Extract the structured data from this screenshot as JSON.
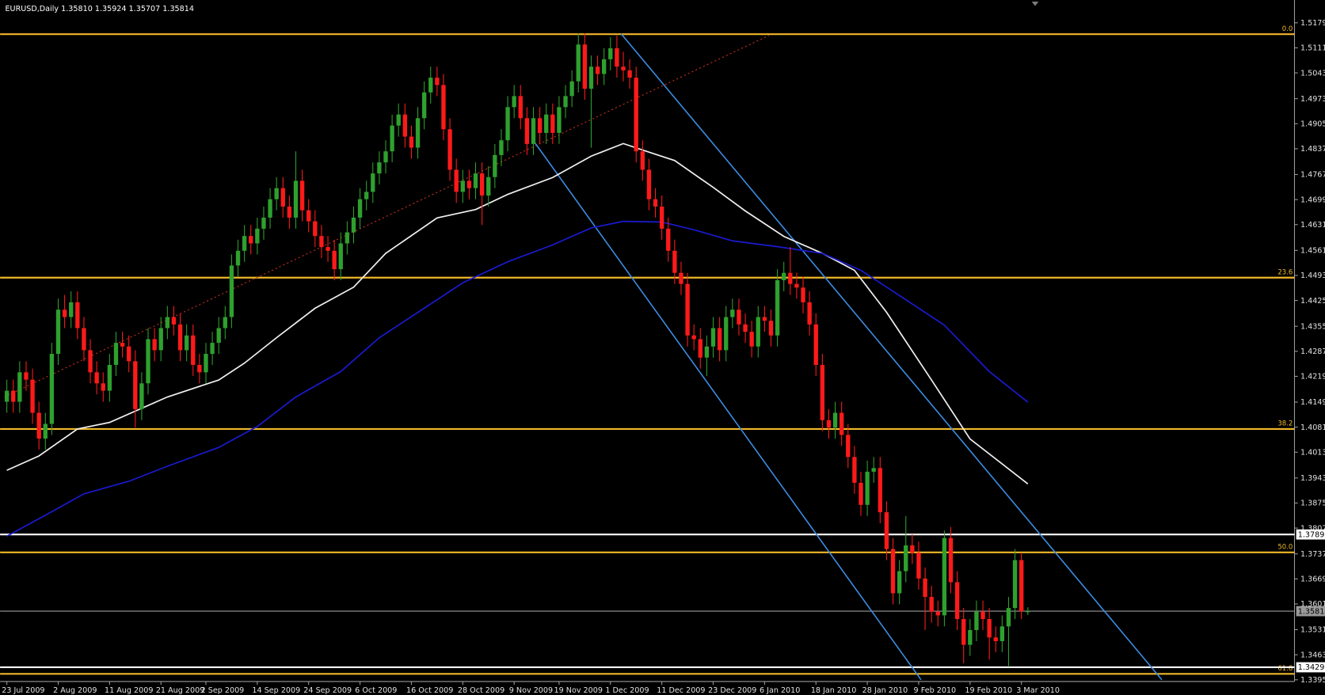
{
  "chart_data": {
    "type": "candlestick",
    "header": "EURUSD,Daily  1.35810 1.35924 1.35707 1.35814",
    "up_color": "#2ea02e",
    "down_color": "#ff1a1a",
    "ylim": [
      1.3395,
      1.5179
    ],
    "yticks": [
      {
        "value": 1.5179,
        "label": "1.51790"
      },
      {
        "value": 1.5111,
        "label": "1.51110"
      },
      {
        "value": 1.5043,
        "label": "1.50430"
      },
      {
        "value": 1.4973,
        "label": "1.49730"
      },
      {
        "value": 1.4905,
        "label": "1.49050"
      },
      {
        "value": 1.4837,
        "label": "1.48370"
      },
      {
        "value": 1.4767,
        "label": "1.47670"
      },
      {
        "value": 1.4699,
        "label": "1.46990"
      },
      {
        "value": 1.4631,
        "label": "1.46310"
      },
      {
        "value": 1.4561,
        "label": "1.45610"
      },
      {
        "value": 1.4493,
        "label": "1.44930"
      },
      {
        "value": 1.4425,
        "label": "1.44250"
      },
      {
        "value": 1.4355,
        "label": "1.43550"
      },
      {
        "value": 1.4287,
        "label": "1.42870"
      },
      {
        "value": 1.4219,
        "label": "1.42190"
      },
      {
        "value": 1.4149,
        "label": "1.41490"
      },
      {
        "value": 1.4081,
        "label": "1.40810"
      },
      {
        "value": 1.4013,
        "label": "1.40130"
      },
      {
        "value": 1.3943,
        "label": "1.39430"
      },
      {
        "value": 1.3875,
        "label": "1.38750"
      },
      {
        "value": 1.3807,
        "label": "1.38070"
      },
      {
        "value": 1.3737,
        "label": "1.37370"
      },
      {
        "value": 1.3669,
        "label": "1.36690"
      },
      {
        "value": 1.3601,
        "label": "1.36010"
      },
      {
        "value": 1.3531,
        "label": "1.35310"
      },
      {
        "value": 1.3463,
        "label": "1.34630"
      },
      {
        "value": 1.3395,
        "label": "1.33950"
      }
    ],
    "categories": [
      "23 Jul 2009",
      null,
      null,
      null,
      null,
      null,
      null,
      null,
      "2 Aug 2009",
      null,
      null,
      null,
      null,
      null,
      null,
      null,
      "11 Aug 2009",
      null,
      null,
      null,
      null,
      null,
      null,
      null,
      "21 Aug 2009",
      null,
      null,
      null,
      null,
      null,
      null,
      "2 Sep 2009",
      null,
      null,
      null,
      null,
      null,
      null,
      null,
      "14 Sep 2009",
      null,
      null,
      null,
      null,
      null,
      null,
      null,
      "24 Sep 2009",
      null,
      null,
      null,
      null,
      null,
      null,
      null,
      "6 Oct 2009",
      null,
      null,
      null,
      null,
      null,
      null,
      null,
      "16 Oct 2009",
      null,
      null,
      null,
      null,
      null,
      null,
      null,
      "28 Oct 2009",
      null,
      null,
      null,
      null,
      null,
      null,
      null,
      "9 Nov 2009",
      null,
      null,
      null,
      null,
      null,
      null,
      "19 Nov 2009",
      null,
      null,
      null,
      null,
      null,
      null,
      null,
      "1 Dec 2009",
      null,
      null,
      null,
      null,
      null,
      null,
      null,
      "11 Dec 2009",
      null,
      null,
      null,
      null,
      null,
      null,
      null,
      "23 Dec 2009",
      null,
      null,
      null,
      null,
      null,
      null,
      null,
      "6 Jan 2010",
      null,
      null,
      null,
      null,
      null,
      null,
      null,
      "18 Jan 2010",
      null,
      null,
      null,
      null,
      null,
      null,
      null,
      "28 Jan 2010",
      null,
      null,
      null,
      null,
      null,
      null,
      null,
      "9 Feb 2010",
      null,
      null,
      null,
      null,
      null,
      null,
      null,
      "19 Feb 2010",
      null,
      null,
      null,
      null,
      null,
      null,
      null,
      "3 Mar 2010",
      null
    ],
    "open": [
      1.415,
      1.418,
      1.415,
      1.423,
      1.421,
      1.412,
      1.405,
      1.409,
      1.428,
      1.44,
      1.438,
      1.442,
      1.435,
      1.429,
      1.423,
      1.42,
      1.418,
      1.425,
      1.431,
      1.43,
      1.426,
      1.413,
      1.42,
      1.432,
      1.429,
      1.435,
      1.438,
      1.436,
      1.429,
      1.433,
      1.425,
      1.423,
      1.428,
      1.431,
      1.435,
      1.438,
      1.452,
      1.456,
      1.46,
      1.458,
      1.462,
      1.465,
      1.47,
      1.473,
      1.468,
      1.465,
      1.475,
      1.467,
      1.464,
      1.46,
      1.457,
      1.456,
      1.451,
      1.458,
      1.461,
      1.465,
      1.47,
      1.472,
      1.477,
      1.48,
      1.483,
      1.49,
      1.493,
      1.487,
      1.484,
      1.492,
      1.499,
      1.503,
      1.501,
      1.489,
      1.478,
      1.472,
      1.475,
      1.473,
      1.477,
      1.471,
      1.476,
      1.482,
      1.486,
      1.495,
      1.498,
      1.492,
      1.485,
      1.492,
      1.488,
      1.493,
      1.488,
      1.495,
      1.498,
      1.502,
      1.512,
      1.5,
      1.506,
      1.504,
      1.508,
      1.511,
      1.506,
      1.505,
      1.503,
      1.483,
      1.478,
      1.47,
      1.468,
      1.462,
      1.456,
      1.45,
      1.447,
      1.433,
      1.432,
      1.427,
      1.43,
      1.435,
      1.429,
      1.438,
      1.44,
      1.436,
      1.434,
      1.43,
      1.438,
      1.437,
      1.433,
      1.448,
      1.45,
      1.447,
      1.446,
      1.442,
      1.436,
      1.425,
      1.41,
      1.408,
      1.412,
      1.406,
      1.4,
      1.393,
      1.387,
      1.396,
      1.397,
      1.385,
      1.375,
      1.363,
      1.369,
      1.376,
      1.374,
      1.367,
      1.362,
      1.358,
      1.357,
      1.378,
      1.366,
      1.356,
      1.349,
      1.353,
      1.358,
      1.356,
      1.351,
      1.35,
      1.354,
      1.359,
      1.372,
      1.3581
    ],
    "high": [
      1.421,
      1.421,
      1.426,
      1.426,
      1.424,
      1.415,
      1.412,
      1.431,
      1.443,
      1.444,
      1.445,
      1.445,
      1.438,
      1.432,
      1.426,
      1.423,
      1.428,
      1.434,
      1.434,
      1.433,
      1.429,
      1.423,
      1.435,
      1.435,
      1.438,
      1.441,
      1.441,
      1.439,
      1.436,
      1.436,
      1.428,
      1.431,
      1.434,
      1.438,
      1.441,
      1.455,
      1.459,
      1.463,
      1.463,
      1.465,
      1.468,
      1.473,
      1.476,
      1.476,
      1.471,
      1.483,
      1.478,
      1.47,
      1.467,
      1.463,
      1.46,
      1.459,
      1.461,
      1.464,
      1.468,
      1.473,
      1.475,
      1.48,
      1.483,
      1.486,
      1.493,
      1.496,
      1.496,
      1.49,
      1.495,
      1.502,
      1.506,
      1.506,
      1.504,
      1.492,
      1.481,
      1.478,
      1.478,
      1.48,
      1.48,
      1.479,
      1.485,
      1.489,
      1.498,
      1.501,
      1.501,
      1.495,
      1.495,
      1.495,
      1.496,
      1.496,
      1.498,
      1.501,
      1.505,
      1.515,
      1.515,
      1.509,
      1.509,
      1.511,
      1.514,
      1.5144,
      1.51,
      1.508,
      1.506,
      1.486,
      1.481,
      1.473,
      1.471,
      1.465,
      1.459,
      1.453,
      1.45,
      1.436,
      1.435,
      1.433,
      1.438,
      1.438,
      1.441,
      1.443,
      1.443,
      1.439,
      1.437,
      1.441,
      1.441,
      1.44,
      1.451,
      1.453,
      1.457,
      1.45,
      1.449,
      1.445,
      1.439,
      1.428,
      1.413,
      1.415,
      1.415,
      1.409,
      1.403,
      1.396,
      1.399,
      1.4,
      1.4,
      1.388,
      1.378,
      1.372,
      1.384,
      1.379,
      1.377,
      1.37,
      1.365,
      1.361,
      1.38,
      1.381,
      1.369,
      1.359,
      1.356,
      1.361,
      1.361,
      1.359,
      1.354,
      1.357,
      1.362,
      1.375,
      1.374,
      1.3592
    ],
    "low": [
      1.412,
      1.412,
      1.412,
      1.418,
      1.409,
      1.402,
      1.402,
      1.406,
      1.425,
      1.435,
      1.435,
      1.432,
      1.426,
      1.42,
      1.417,
      1.415,
      1.415,
      1.422,
      1.427,
      1.423,
      1.408,
      1.41,
      1.417,
      1.426,
      1.426,
      1.432,
      1.433,
      1.426,
      1.426,
      1.422,
      1.42,
      1.42,
      1.425,
      1.428,
      1.432,
      1.435,
      1.449,
      1.453,
      1.455,
      1.455,
      1.459,
      1.462,
      1.467,
      1.465,
      1.462,
      1.462,
      1.464,
      1.461,
      1.457,
      1.454,
      1.453,
      1.448,
      1.448,
      1.455,
      1.458,
      1.462,
      1.467,
      1.469,
      1.474,
      1.477,
      1.48,
      1.487,
      1.484,
      1.481,
      1.481,
      1.489,
      1.496,
      1.498,
      1.486,
      1.475,
      1.469,
      1.469,
      1.47,
      1.47,
      1.463,
      1.468,
      1.473,
      1.479,
      1.483,
      1.492,
      1.489,
      1.482,
      1.482,
      1.485,
      1.485,
      1.485,
      1.485,
      1.492,
      1.495,
      1.499,
      1.497,
      1.484,
      1.501,
      1.501,
      1.505,
      1.503,
      1.502,
      1.5,
      1.48,
      1.475,
      1.467,
      1.465,
      1.459,
      1.453,
      1.447,
      1.444,
      1.43,
      1.429,
      1.424,
      1.422,
      1.427,
      1.426,
      1.426,
      1.435,
      1.433,
      1.431,
      1.427,
      1.427,
      1.434,
      1.43,
      1.43,
      1.445,
      1.444,
      1.443,
      1.439,
      1.433,
      1.422,
      1.407,
      1.405,
      1.405,
      1.403,
      1.397,
      1.39,
      1.384,
      1.384,
      1.393,
      1.382,
      1.372,
      1.36,
      1.36,
      1.366,
      1.371,
      1.364,
      1.353,
      1.355,
      1.354,
      1.354,
      1.363,
      1.353,
      1.344,
      1.346,
      1.35,
      1.353,
      1.345,
      1.347,
      1.347,
      1.343,
      1.356,
      1.356,
      1.3571
    ],
    "close": [
      1.418,
      1.415,
      1.423,
      1.421,
      1.412,
      1.405,
      1.409,
      1.428,
      1.44,
      1.438,
      1.442,
      1.435,
      1.429,
      1.423,
      1.42,
      1.418,
      1.425,
      1.431,
      1.43,
      1.426,
      1.413,
      1.42,
      1.432,
      1.429,
      1.435,
      1.438,
      1.436,
      1.429,
      1.433,
      1.425,
      1.423,
      1.428,
      1.431,
      1.435,
      1.438,
      1.452,
      1.456,
      1.46,
      1.458,
      1.462,
      1.465,
      1.47,
      1.473,
      1.468,
      1.465,
      1.475,
      1.467,
      1.464,
      1.46,
      1.457,
      1.456,
      1.451,
      1.458,
      1.461,
      1.465,
      1.47,
      1.472,
      1.477,
      1.48,
      1.483,
      1.49,
      1.493,
      1.487,
      1.484,
      1.492,
      1.499,
      1.503,
      1.501,
      1.489,
      1.478,
      1.472,
      1.475,
      1.473,
      1.477,
      1.471,
      1.476,
      1.482,
      1.486,
      1.495,
      1.498,
      1.492,
      1.485,
      1.492,
      1.488,
      1.493,
      1.488,
      1.495,
      1.498,
      1.502,
      1.512,
      1.5,
      1.506,
      1.504,
      1.508,
      1.511,
      1.506,
      1.505,
      1.503,
      1.483,
      1.478,
      1.47,
      1.468,
      1.462,
      1.456,
      1.45,
      1.447,
      1.433,
      1.432,
      1.427,
      1.43,
      1.435,
      1.429,
      1.438,
      1.44,
      1.436,
      1.434,
      1.43,
      1.438,
      1.437,
      1.433,
      1.448,
      1.45,
      1.447,
      1.446,
      1.442,
      1.436,
      1.425,
      1.41,
      1.408,
      1.412,
      1.406,
      1.4,
      1.393,
      1.387,
      1.396,
      1.397,
      1.385,
      1.375,
      1.363,
      1.369,
      1.376,
      1.374,
      1.367,
      1.362,
      1.358,
      1.357,
      1.378,
      1.366,
      1.356,
      1.349,
      1.353,
      1.358,
      1.356,
      1.351,
      1.35,
      1.354,
      1.359,
      1.372,
      1.3581,
      1.3581
    ],
    "indicators": [
      {
        "color": "#f0f0f0",
        "x": [
          0,
          5,
          11,
          16,
          25,
          33,
          37,
          42,
          48,
          54,
          59,
          67,
          73,
          78,
          85,
          91,
          96,
          100,
          104,
          110,
          115,
          121,
          127,
          132,
          137,
          144,
          150,
          159
        ],
        "values": [
          1.3964,
          1.4003,
          1.4076,
          1.4094,
          1.4163,
          1.4209,
          1.4255,
          1.4324,
          1.4404,
          1.4461,
          1.4553,
          1.4649,
          1.4672,
          1.4713,
          1.4759,
          1.4817,
          1.4851,
          1.4828,
          1.4805,
          1.4732,
          1.4668,
          1.4599,
          1.4553,
          1.4507,
          1.4393,
          1.4209,
          1.4049,
          1.3927
        ]
      },
      {
        "color": "#1a1ad0",
        "x": [
          0,
          6,
          12,
          19,
          25,
          33,
          39,
          45,
          52,
          58,
          65,
          71,
          78,
          85,
          91,
          96,
          102,
          107,
          113,
          120,
          127,
          133,
          138,
          146,
          153,
          159
        ],
        "values": [
          1.3785,
          1.3842,
          1.39,
          1.3934,
          1.3975,
          1.4026,
          1.4083,
          1.4163,
          1.4232,
          1.4324,
          1.4404,
          1.4473,
          1.453,
          1.4576,
          1.4622,
          1.464,
          1.4638,
          1.4617,
          1.4587,
          1.4571,
          1.4553,
          1.4507,
          1.445,
          1.4358,
          1.4232,
          1.4149
        ]
      }
    ],
    "levels_color": "#f0b828",
    "levels": [
      {
        "value": 1.5148,
        "label": "0.0"
      },
      {
        "value": 1.4487,
        "label": "23.6"
      },
      {
        "value": 1.4076,
        "label": "38.2"
      },
      {
        "value": 1.3741,
        "label": "50.0"
      },
      {
        "value": 1.3411,
        "label": "61.8"
      }
    ],
    "price_lines": [
      {
        "value": 1.37897,
        "color": "#ffffff"
      },
      {
        "value": 1.35814,
        "color": "#9a9a9a"
      },
      {
        "value": 1.3429,
        "label": "1.34290",
        "color": "#ffffff"
      }
    ]
  }
}
